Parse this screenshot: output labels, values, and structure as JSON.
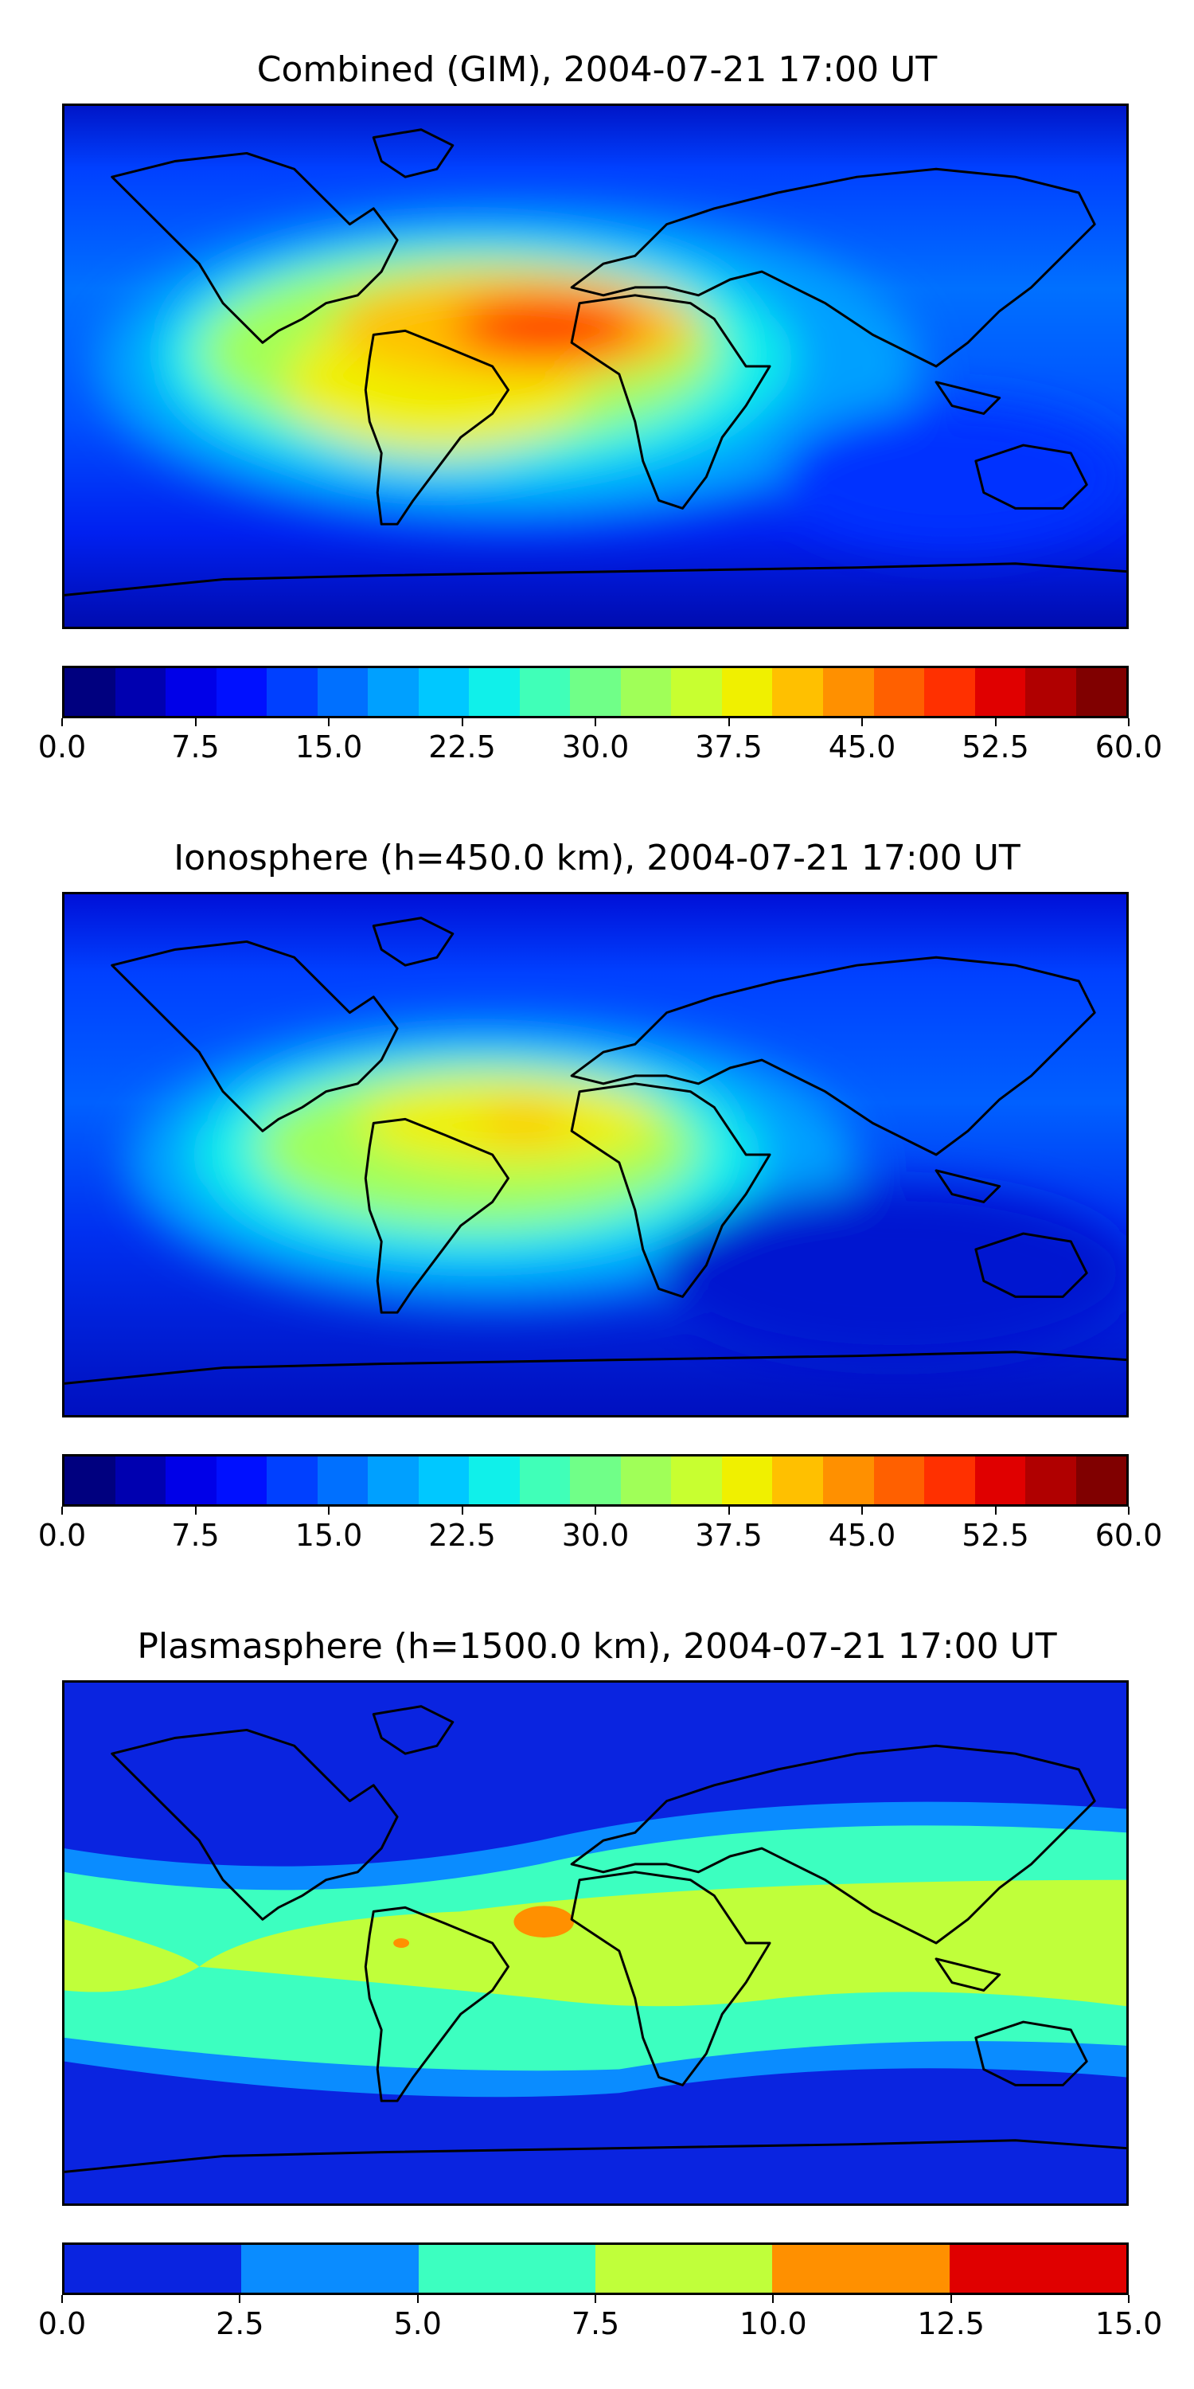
{
  "panels": [
    {
      "title": "Combined (GIM), 2004-07-21 17:00 UT",
      "variant": "combined",
      "colorbar": {
        "colors": [
          "#00007f",
          "#0000b0",
          "#0000e8",
          "#0010ff",
          "#0040ff",
          "#0070ff",
          "#00a0ff",
          "#00c8ff",
          "#10f0ea",
          "#40ffb8",
          "#70ff88",
          "#a0ff58",
          "#c8ff30",
          "#f0f000",
          "#ffc000",
          "#ff9000",
          "#ff6000",
          "#ff3000",
          "#e00000",
          "#b00000",
          "#800000"
        ],
        "ticks": [
          "0.0",
          "7.5",
          "15.0",
          "22.5",
          "30.0",
          "37.5",
          "45.0",
          "52.5",
          "60.0"
        ]
      }
    },
    {
      "title": "Ionosphere  (h=450.0 km), 2004-07-21 17:00 UT",
      "variant": "ionosphere",
      "colorbar": {
        "colors": [
          "#00007f",
          "#0000b0",
          "#0000e8",
          "#0010ff",
          "#0040ff",
          "#0070ff",
          "#00a0ff",
          "#00c8ff",
          "#10f0ea",
          "#40ffb8",
          "#70ff88",
          "#a0ff58",
          "#c8ff30",
          "#f0f000",
          "#ffc000",
          "#ff9000",
          "#ff6000",
          "#ff3000",
          "#e00000",
          "#b00000",
          "#800000"
        ],
        "ticks": [
          "0.0",
          "7.5",
          "15.0",
          "22.5",
          "30.0",
          "37.5",
          "45.0",
          "52.5",
          "60.0"
        ]
      }
    },
    {
      "title": "Plasmasphere (h=1500.0 km), 2004-07-21 17:00 UT",
      "variant": "plasmasphere",
      "colorbar": {
        "colors": [
          "#0a24e0",
          "#0a8cff",
          "#3cffc0",
          "#c0ff3a",
          "#ff9000",
          "#e00000"
        ],
        "ticks": [
          "0.0",
          "2.5",
          "5.0",
          "7.5",
          "10.0",
          "12.5",
          "15.0"
        ]
      }
    }
  ]
}
